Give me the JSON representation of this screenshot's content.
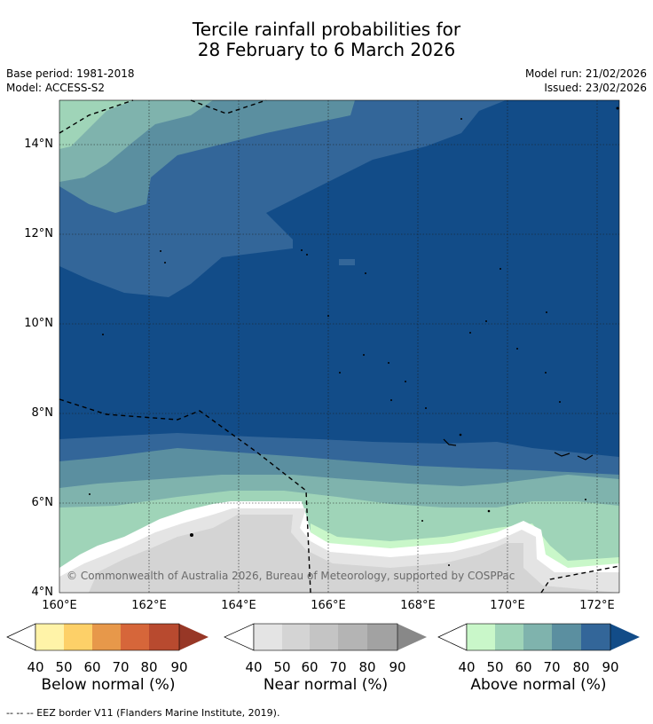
{
  "title_line1": "Tercile rainfall probabilities for",
  "title_line2": "28 February to 6 March 2026",
  "base_period": "Base period: 1981-2018",
  "model": "Model: ACCESS-S2",
  "model_run": "Model run: 21/02/2026",
  "issued": "Issued: 23/02/2026",
  "copyright": "© Commonwealth of Australia 2026, Bureau of Meteorology, supported by COSPPac",
  "lat_ticks": [
    "14°N",
    "12°N",
    "10°N",
    "8°N",
    "6°N",
    "4°N"
  ],
  "lon_ticks": [
    "160°E",
    "162°E",
    "164°E",
    "166°E",
    "168°E",
    "170°E",
    "172°E"
  ],
  "colorbars": [
    {
      "caption": "Below normal (%)",
      "ticks": [
        "40",
        "50",
        "60",
        "70",
        "80",
        "90"
      ],
      "colors": [
        "#fff3a8",
        "#fdd068",
        "#e7984a",
        "#d6663a",
        "#b84a2f",
        "#973726"
      ]
    },
    {
      "caption": "Near normal (%)",
      "ticks": [
        "40",
        "50",
        "60",
        "70",
        "80",
        "90"
      ],
      "colors": [
        "#e4e4e4",
        "#d4d4d4",
        "#c4c4c4",
        "#b4b4b4",
        "#a2a2a2",
        "#888888"
      ]
    },
    {
      "caption": "Above normal (%)",
      "ticks": [
        "40",
        "50",
        "60",
        "70",
        "80",
        "90"
      ],
      "colors": [
        "#c9f7c9",
        "#9fd4b8",
        "#7fb3ad",
        "#5b8fa0",
        "#336699",
        "#124c88"
      ]
    }
  ],
  "footer": "--  --  -- EEZ border V11 (Flanders Marine Institute, 2019)."
}
